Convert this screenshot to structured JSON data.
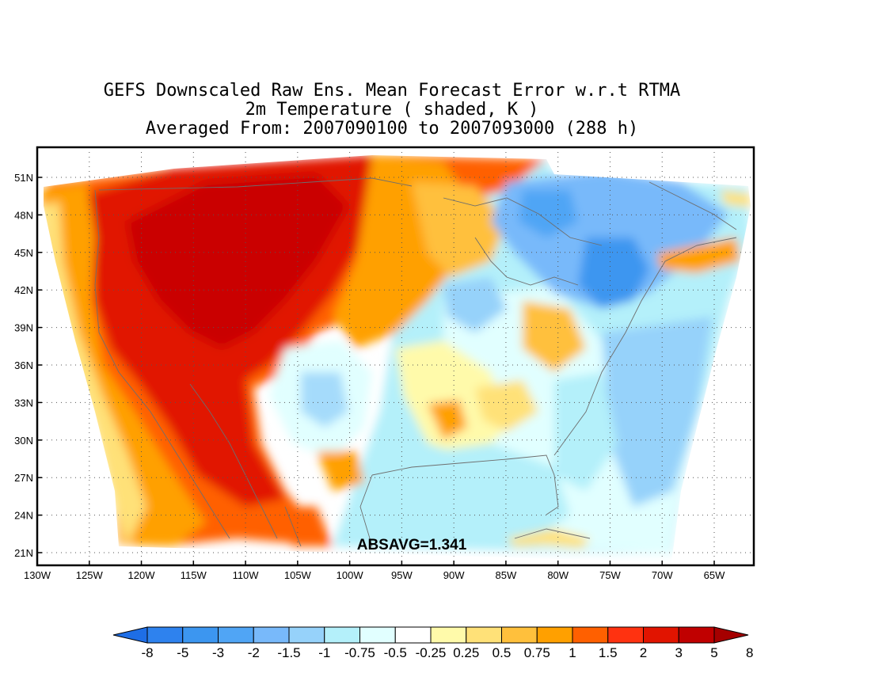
{
  "title_lines": [
    "GEFS Downscaled Raw Ens. Mean Forecast Error w.r.t RTMA",
    "2m Temperature ( shaded, K )",
    "Averaged From: 2007090100 to 2007093000 (288 h)"
  ],
  "annotation": "ABSAVG=1.341",
  "lat_labels": [
    "51N",
    "48N",
    "45N",
    "42N",
    "39N",
    "36N",
    "33N",
    "30N",
    "27N",
    "24N",
    "21N"
  ],
  "lat_values": [
    51,
    48,
    45,
    42,
    39,
    36,
    33,
    30,
    27,
    24,
    21
  ],
  "lon_labels": [
    "130W",
    "125W",
    "120W",
    "115W",
    "110W",
    "105W",
    "100W",
    "95W",
    "90W",
    "85W",
    "80W",
    "75W",
    "70W",
    "65W"
  ],
  "lon_values": [
    -130,
    -125,
    -120,
    -115,
    -110,
    -105,
    -100,
    -95,
    -90,
    -85,
    -80,
    -75,
    -70,
    -65
  ],
  "colorbar": {
    "labels": [
      "-8",
      "-5",
      "-3",
      "-2",
      "-1.5",
      "-1",
      "-0.75",
      "-0.5",
      "-0.25",
      "0.25",
      "0.5",
      "0.75",
      "1",
      "1.5",
      "2",
      "3",
      "5",
      "8"
    ],
    "colors": [
      "#1e6ee6",
      "#2e82ee",
      "#3c96f0",
      "#50a5f5",
      "#78b9fa",
      "#96d2fa",
      "#b4f0fa",
      "#e1ffff",
      "#ffffff",
      "#fffaaa",
      "#ffe178",
      "#ffc03c",
      "#ffa000",
      "#ff6000",
      "#ff3210",
      "#e11400",
      "#c00000",
      "#a50000"
    ]
  },
  "colors": {
    "warm_strong": "#e11400",
    "warm_mid": "#ff6000",
    "warm_light": "#ffc03c",
    "cool_light": "#b4f0fa",
    "cool_mid": "#78b9fa",
    "cool_strong": "#3c96f0"
  }
}
